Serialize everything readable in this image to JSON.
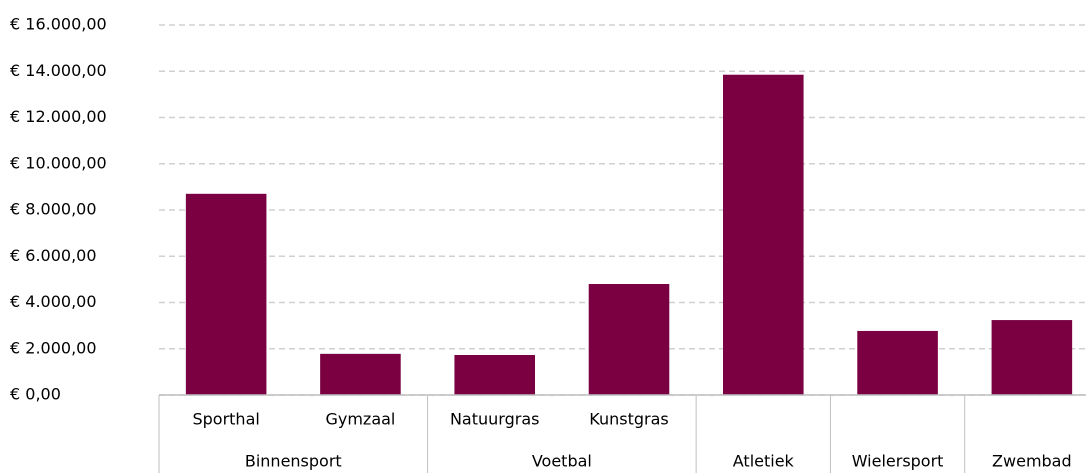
{
  "chart_data": {
    "type": "bar",
    "categories": [
      "Sporthal",
      "Gymzaal",
      "Natuurgras",
      "Kunstgras",
      null,
      null,
      null
    ],
    "group_labels": [
      "Binnensport",
      "Binnensport",
      "Voetbal",
      "Voetbal",
      "Atletiek",
      "Wielersport",
      "Zwembad"
    ],
    "values": [
      8700,
      1780,
      1730,
      4800,
      13850,
      2770,
      3240
    ],
    "color": "#7b0041",
    "ylim": [
      0,
      16000
    ],
    "yticks": [
      {
        "value": 0,
        "label": "€ 0,00"
      },
      {
        "value": 2000,
        "label": "€ 2.000,00"
      },
      {
        "value": 4000,
        "label": "€ 4.000,00"
      },
      {
        "value": 6000,
        "label": "€ 6.000,00"
      },
      {
        "value": 8000,
        "label": "€ 8.000,00"
      },
      {
        "value": 10000,
        "label": "€ 10.000,00"
      },
      {
        "value": 12000,
        "label": "€ 12.000,00"
      },
      {
        "value": 14000,
        "label": "€ 14.000,00"
      },
      {
        "value": 16000,
        "label": "€ 16.000,00"
      }
    ],
    "grid": true
  }
}
